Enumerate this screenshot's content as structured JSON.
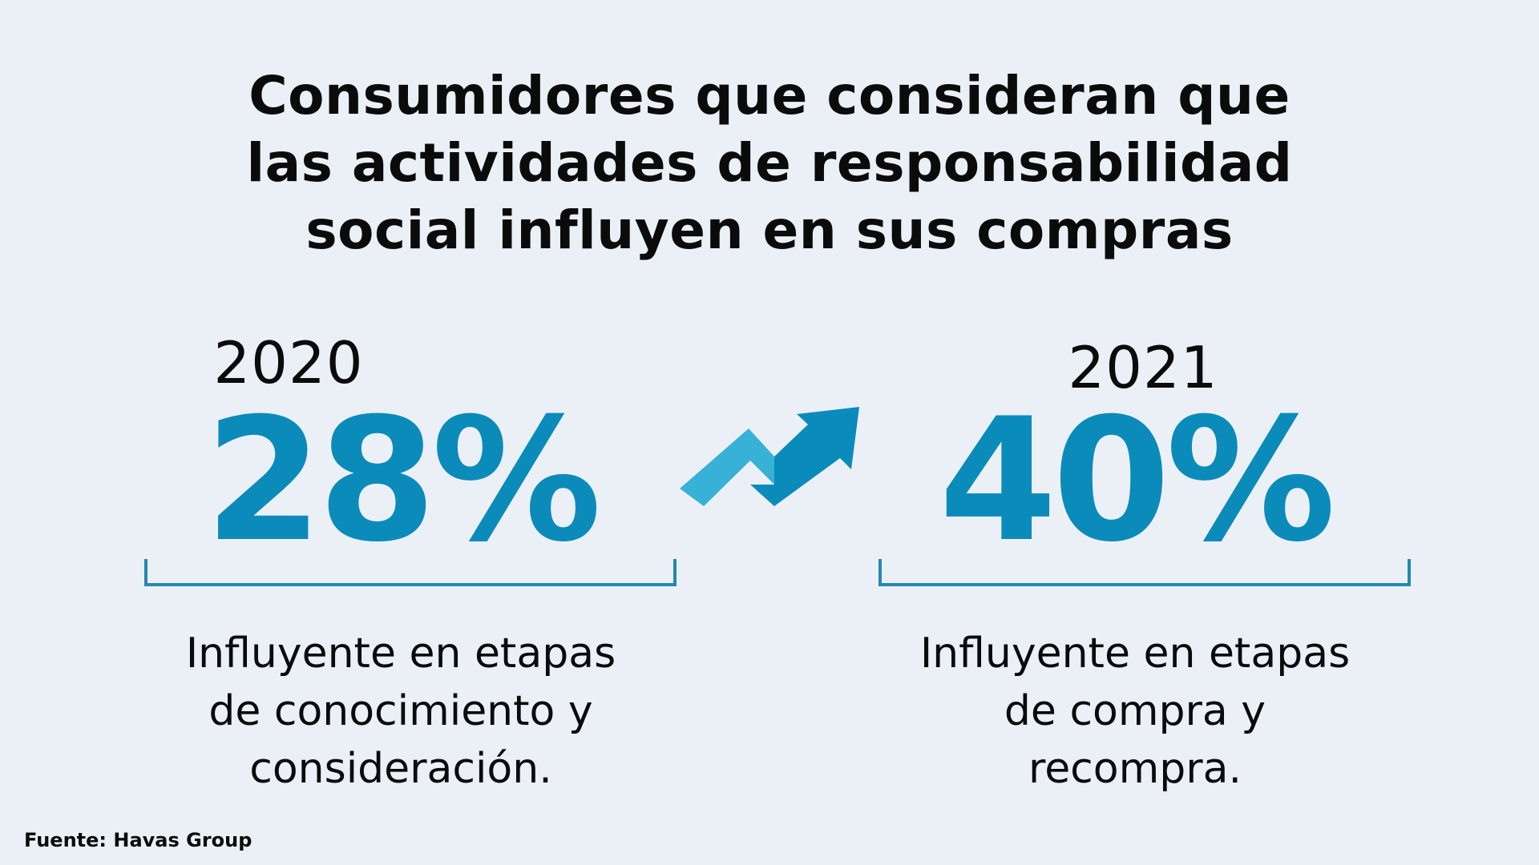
{
  "title": {
    "line1": "Consumidores que consideran que",
    "line2": "las actividades de responsabilidad",
    "line3": "social influyen en sus compras"
  },
  "stats": [
    {
      "year": "2020",
      "percent": "28%",
      "description": [
        "Influyente en etapas",
        "de conocimiento y",
        "consideración."
      ]
    },
    {
      "year": "2021",
      "percent": "40%",
      "description": [
        "Influyente en etapas",
        "de compra y",
        "recompra."
      ]
    }
  ],
  "icon": {
    "name": "trend-up-arrow-icon"
  },
  "source": "Fuente: Havas Group",
  "colors": {
    "background": "#ebf0f7",
    "text": "#0b0b0b",
    "accent_dark": "#0b8bba",
    "accent_light": "#38b1d6",
    "bracket": "#2587b1"
  }
}
